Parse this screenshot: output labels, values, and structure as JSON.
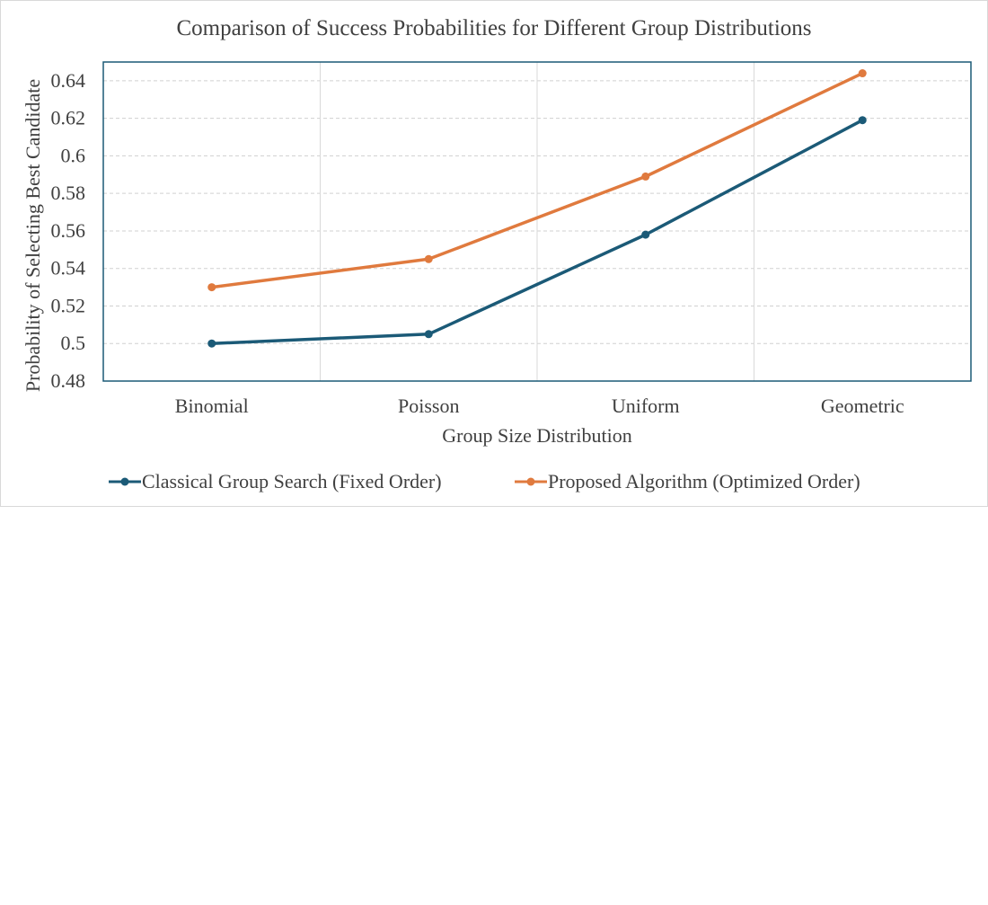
{
  "chart_data": {
    "type": "line",
    "title": "Comparison of Success Probabilities for Different Group Distributions",
    "xlabel": "Group Size Distribution",
    "ylabel": "Probability of Selecting Best Candidate",
    "categories": [
      "Binomial",
      "Poisson",
      "Uniform",
      "Geometric"
    ],
    "ylim": [
      0.48,
      0.65
    ],
    "yticks": [
      0.48,
      0.5,
      0.52,
      0.54,
      0.56,
      0.58,
      0.6,
      0.62,
      0.64
    ],
    "ytick_labels": [
      "0.48",
      "0.5",
      "0.52",
      "0.54",
      "0.56",
      "0.58",
      "0.6",
      "0.62",
      "0.64"
    ],
    "grid": true,
    "legend_position": "bottom",
    "series": [
      {
        "name": "Classical Group Search (Fixed Order)",
        "color": "#1b5a77",
        "values": [
          0.5,
          0.505,
          0.558,
          0.619
        ]
      },
      {
        "name": "Proposed Algorithm (Optimized Order)",
        "color": "#e07a3e",
        "values": [
          0.53,
          0.545,
          0.589,
          0.644
        ]
      }
    ]
  }
}
